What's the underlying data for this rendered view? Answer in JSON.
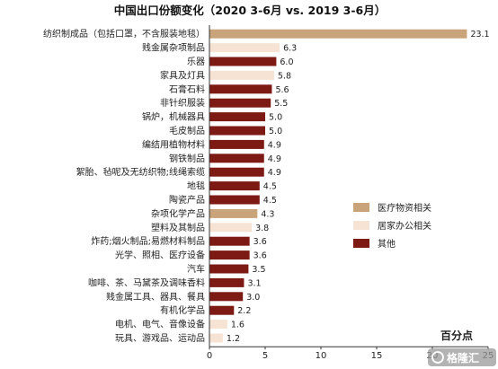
{
  "chart_data": {
    "type": "bar",
    "orientation": "horizontal",
    "title": "中国出口份额变化（2020 3-6月 vs. 2019 3-6月）",
    "unit_label": "百分点",
    "xlim": [
      0,
      25
    ],
    "xticks": [
      "0",
      "5",
      "10",
      "15",
      "20",
      "25"
    ],
    "xtick_values": [
      0,
      5,
      10,
      15,
      20,
      25
    ],
    "legend_position": "right-middle",
    "legend": [
      {
        "key": "medical",
        "label": "医疗物资相关",
        "color": "#c9a37a"
      },
      {
        "key": "home",
        "label": "居家办公相关",
        "color": "#f6e3d4"
      },
      {
        "key": "other",
        "label": "其他",
        "color": "#7d1a14"
      }
    ],
    "categories": [
      {
        "label": "纺织制成品（包括口罩，不含服装地毯）",
        "value": 23.1,
        "group": "medical",
        "value_label": "23.1"
      },
      {
        "label": "贱金属杂项制品",
        "value": 6.3,
        "group": "home",
        "value_label": "6.3"
      },
      {
        "label": "乐器",
        "value": 6.0,
        "group": "other",
        "value_label": "6.0"
      },
      {
        "label": "家具及灯具",
        "value": 5.8,
        "group": "home",
        "value_label": "5.8"
      },
      {
        "label": "石膏石料",
        "value": 5.6,
        "group": "other",
        "value_label": "5.6"
      },
      {
        "label": "非针织服装",
        "value": 5.5,
        "group": "other",
        "value_label": "5.5"
      },
      {
        "label": "锅炉，机械器具",
        "value": 5.0,
        "group": "other",
        "value_label": "5.0"
      },
      {
        "label": "毛皮制品",
        "value": 5.0,
        "group": "other",
        "value_label": "5.0"
      },
      {
        "label": "编结用植物材料",
        "value": 4.9,
        "group": "other",
        "value_label": "4.9"
      },
      {
        "label": "钢铁制品",
        "value": 4.9,
        "group": "other",
        "value_label": "4.9"
      },
      {
        "label": "絮胎、毡呢及无纺织物;线绳索缆",
        "value": 4.9,
        "group": "other",
        "value_label": "4.9"
      },
      {
        "label": "地毯",
        "value": 4.5,
        "group": "other",
        "value_label": "4.5"
      },
      {
        "label": "陶瓷产品",
        "value": 4.5,
        "group": "other",
        "value_label": "4.5"
      },
      {
        "label": "杂项化学产品",
        "value": 4.3,
        "group": "medical",
        "value_label": "4.3"
      },
      {
        "label": "塑料及其制品",
        "value": 3.8,
        "group": "home",
        "value_label": "3.8"
      },
      {
        "label": "炸药;烟火制品;易燃材料制品",
        "value": 3.6,
        "group": "other",
        "value_label": "3.6"
      },
      {
        "label": "光学、照相、医疗设备",
        "value": 3.6,
        "group": "other",
        "value_label": "3.6"
      },
      {
        "label": "汽车",
        "value": 3.5,
        "group": "other",
        "value_label": "3.5"
      },
      {
        "label": "咖啡、茶、马黛茶及调味香料",
        "value": 3.1,
        "group": "other",
        "value_label": "3.1"
      },
      {
        "label": "贱金属工具、器具、餐具",
        "value": 3.0,
        "group": "other",
        "value_label": "3.0"
      },
      {
        "label": "有机化学品",
        "value": 2.2,
        "group": "other",
        "value_label": "2.2"
      },
      {
        "label": "电机、电气、音像设备",
        "value": 1.6,
        "group": "home",
        "value_label": "1.6"
      },
      {
        "label": "玩具、游戏品、运动品",
        "value": 1.2,
        "group": "home",
        "value_label": "1.2"
      }
    ]
  },
  "watermark": "格隆汇"
}
